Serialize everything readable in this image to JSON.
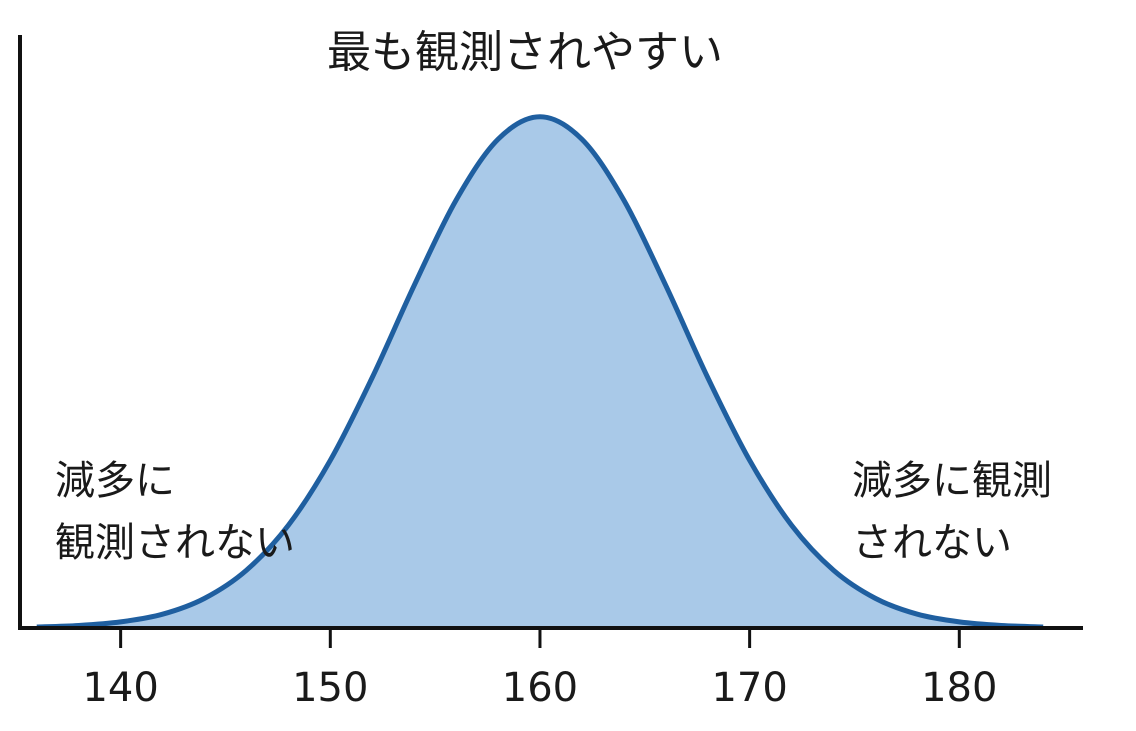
{
  "chart_data": {
    "type": "area",
    "title": "最も観測されやすい",
    "x": [
      136,
      138,
      140,
      142,
      144,
      146,
      148,
      150,
      152,
      154,
      156,
      158,
      160,
      162,
      164,
      166,
      168,
      170,
      172,
      174,
      176,
      178,
      180,
      182,
      184
    ],
    "values": [
      0.002,
      0.005,
      0.012,
      0.027,
      0.058,
      0.113,
      0.201,
      0.328,
      0.49,
      0.67,
      0.837,
      0.956,
      1,
      0.956,
      0.837,
      0.67,
      0.49,
      0.328,
      0.201,
      0.113,
      0.058,
      0.027,
      0.012,
      0.005,
      0.002
    ],
    "color": "#1f5fa0",
    "fill_color": "#a9c9e8",
    "xlim": [
      135.2,
      185.9
    ],
    "ylim": [
      0,
      1.16
    ],
    "xticks": [
      140,
      150,
      160,
      170,
      180
    ],
    "annotations": [
      {
        "lines": [
          "減多に",
          "観測されない"
        ]
      },
      {
        "lines": [
          "減多に観測",
          "されない"
        ]
      }
    ]
  }
}
